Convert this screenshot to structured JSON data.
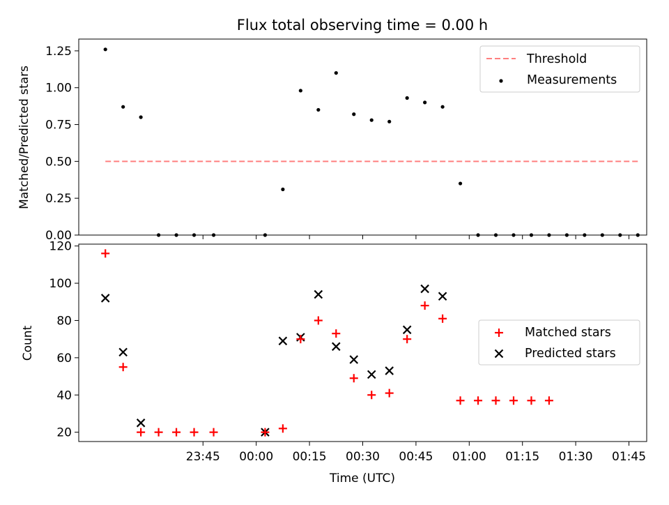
{
  "chart_data": [
    {
      "type": "scatter",
      "title": "Flux total observing time = 0.00 h",
      "xlabel": "",
      "ylabel": "Matched/Predicted stars",
      "xlim": [
        -50,
        110
      ],
      "ylim": [
        0,
        1.33
      ],
      "yticks": [
        "0.00",
        "0.25",
        "0.50",
        "0.75",
        "1.00",
        "1.25"
      ],
      "ytick_values": [
        0,
        0.25,
        0.5,
        0.75,
        1.0,
        1.25
      ],
      "xtick_values": [
        -15,
        0,
        15,
        30,
        45,
        60,
        75,
        90,
        105
      ],
      "grid": false,
      "legend_position": "top-right",
      "series": [
        {
          "name": "Threshold",
          "kind": "dashed-line",
          "color": "#ff7f7f",
          "x": [
            -42.5,
            107.5
          ],
          "y": [
            0.5,
            0.5
          ]
        },
        {
          "name": "Measurements",
          "kind": "dot",
          "color": "#000000",
          "x": [
            -42.5,
            -37.5,
            -32.5,
            -27.5,
            -22.5,
            -17.5,
            -12,
            2.5,
            7.5,
            12.5,
            17.5,
            22.5,
            27.5,
            32.5,
            37.5,
            42.5,
            47.5,
            52.5,
            57.5,
            62.5,
            67.5,
            72.5,
            77.5,
            82.5,
            87.5,
            92.5,
            97.5,
            102.5,
            107.5
          ],
          "y": [
            1.26,
            0.87,
            0.8,
            0.0,
            0.0,
            0.0,
            0.0,
            0.0,
            0.31,
            0.98,
            0.85,
            1.1,
            0.82,
            0.78,
            0.77,
            0.93,
            0.9,
            0.87,
            0.35,
            0.0,
            0.0,
            0.0,
            0.0,
            0.0,
            0.0,
            0.0,
            0.0,
            0.0,
            0.0
          ]
        }
      ]
    },
    {
      "type": "scatter",
      "title": "",
      "xlabel": "Time (UTC)",
      "ylabel": "Count",
      "xlim": [
        -50,
        110
      ],
      "ylim": [
        15,
        121
      ],
      "yticks": [
        "20",
        "40",
        "60",
        "80",
        "100",
        "120"
      ],
      "ytick_values": [
        20,
        40,
        60,
        80,
        100,
        120
      ],
      "xticks": [
        "23:45",
        "00:00",
        "00:15",
        "00:30",
        "00:45",
        "01:00",
        "01:15",
        "01:30",
        "01:45"
      ],
      "xtick_values": [
        -15,
        0,
        15,
        30,
        45,
        60,
        75,
        90,
        105
      ],
      "grid": false,
      "legend_position": "center-right",
      "series": [
        {
          "name": "Matched stars",
          "marker": "plus",
          "color": "#ff0000",
          "x": [
            -42.5,
            -37.5,
            -32.5,
            -27.5,
            -22.5,
            -17.5,
            -12,
            2.5,
            7.5,
            12.5,
            17.5,
            22.5,
            27.5,
            32.5,
            37.5,
            42.5,
            47.5,
            52.5,
            57.5,
            62.5,
            67.5,
            72.5,
            77.5,
            82.5
          ],
          "y": [
            116,
            55,
            20,
            20,
            20,
            20,
            20,
            20,
            22,
            70,
            80,
            73,
            49,
            40,
            41,
            70,
            88,
            81,
            37,
            37,
            37,
            37,
            37,
            37
          ]
        },
        {
          "name": "Predicted stars",
          "marker": "x",
          "color": "#000000",
          "x": [
            -42.5,
            -37.5,
            -32.5,
            2.5,
            7.5,
            12.5,
            17.5,
            22.5,
            27.5,
            32.5,
            37.5,
            42.5,
            47.5,
            52.5
          ],
          "y": [
            92,
            63,
            25,
            20,
            69,
            71,
            94,
            66,
            59,
            51,
            53,
            75,
            97,
            93
          ]
        }
      ]
    }
  ]
}
